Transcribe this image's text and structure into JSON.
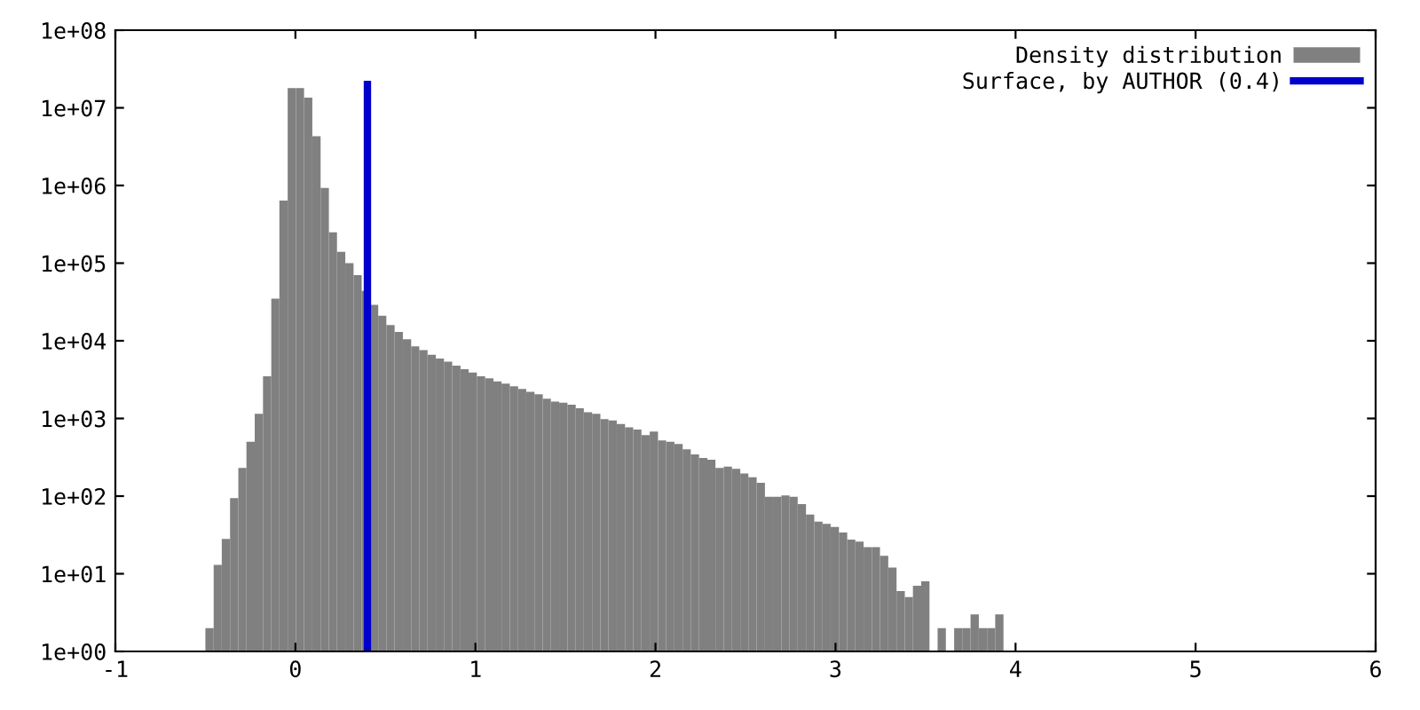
{
  "chart_data": {
    "type": "histogram",
    "bins": [
      -0.5,
      -0.454,
      -0.409,
      -0.363,
      -0.317,
      -0.272,
      -0.226,
      -0.18,
      -0.134,
      -0.089,
      -0.043,
      0.003,
      0.048,
      0.094,
      0.14,
      0.186,
      0.231,
      0.277,
      0.323,
      0.368,
      0.414,
      0.46,
      0.505,
      0.551,
      0.597,
      0.643,
      0.688,
      0.734,
      0.78,
      0.825,
      0.871,
      0.917,
      0.962,
      1.008,
      1.054,
      1.1,
      1.145,
      1.191,
      1.237,
      1.282,
      1.328,
      1.374,
      1.419,
      1.465,
      1.511,
      1.557,
      1.602,
      1.648,
      1.694,
      1.739,
      1.785,
      1.831,
      1.876,
      1.922,
      1.968,
      2.014,
      2.059,
      2.105,
      2.151,
      2.196,
      2.242,
      2.288,
      2.333,
      2.379,
      2.425,
      2.471,
      2.516,
      2.562,
      2.608,
      2.653,
      2.699,
      2.745,
      2.79,
      2.836,
      2.882,
      2.928,
      2.973,
      3.019,
      3.065,
      3.11,
      3.156,
      3.202,
      3.247,
      3.293,
      3.339,
      3.385,
      3.43,
      3.476,
      3.522,
      3.567,
      3.613,
      3.659,
      3.704,
      3.75,
      3.796,
      3.842,
      3.887,
      3.933
    ],
    "series": [
      {
        "name": "Density distribution",
        "color": "#808080",
        "values": [
          2,
          13,
          28,
          94,
          230,
          500,
          1150,
          3500,
          35000,
          640000,
          18000000,
          18000000,
          13500000,
          4300000,
          930000,
          250000,
          140000,
          100000,
          70000,
          44000,
          29000,
          21000,
          16000,
          13000,
          10500,
          8500,
          7600,
          6600,
          5900,
          5400,
          4800,
          4300,
          3900,
          3500,
          3300,
          3000,
          2800,
          2600,
          2400,
          2200,
          2050,
          1800,
          1650,
          1600,
          1500,
          1350,
          1200,
          1150,
          980,
          940,
          850,
          770,
          720,
          610,
          680,
          520,
          500,
          470,
          400,
          345,
          310,
          295,
          230,
          240,
          225,
          195,
          175,
          148,
          98,
          98,
          102,
          98,
          79,
          58,
          47,
          44,
          40,
          34,
          27.5,
          26,
          22,
          22,
          17,
          12,
          6,
          5,
          7,
          8,
          null,
          2,
          null,
          2,
          2,
          3,
          2,
          2,
          3
        ]
      },
      {
        "type": "line",
        "name": "Surface, by AUTHOR (0.4)",
        "color": "#0000cc",
        "x": [
          0.4,
          0.4
        ],
        "values": [
          1,
          20000000
        ]
      }
    ],
    "log": "y",
    "xlim": [
      -1,
      6
    ],
    "xticks": [
      -1,
      0,
      1,
      2,
      3,
      4,
      5,
      6
    ],
    "ylim": [
      1,
      100000000
    ],
    "yticks": [
      {
        "value": 1,
        "label": "1e+00"
      },
      {
        "value": 10,
        "label": "1e+01"
      },
      {
        "value": 100,
        "label": "1e+02"
      },
      {
        "value": 1000,
        "label": "1e+03"
      },
      {
        "value": 10000,
        "label": "1e+04"
      },
      {
        "value": 100000,
        "label": "1e+05"
      },
      {
        "value": 1000000,
        "label": "1e+06"
      },
      {
        "value": 10000000,
        "label": "1e+07"
      },
      {
        "value": 100000000,
        "label": "1e+08"
      }
    ],
    "legend": "top right"
  }
}
